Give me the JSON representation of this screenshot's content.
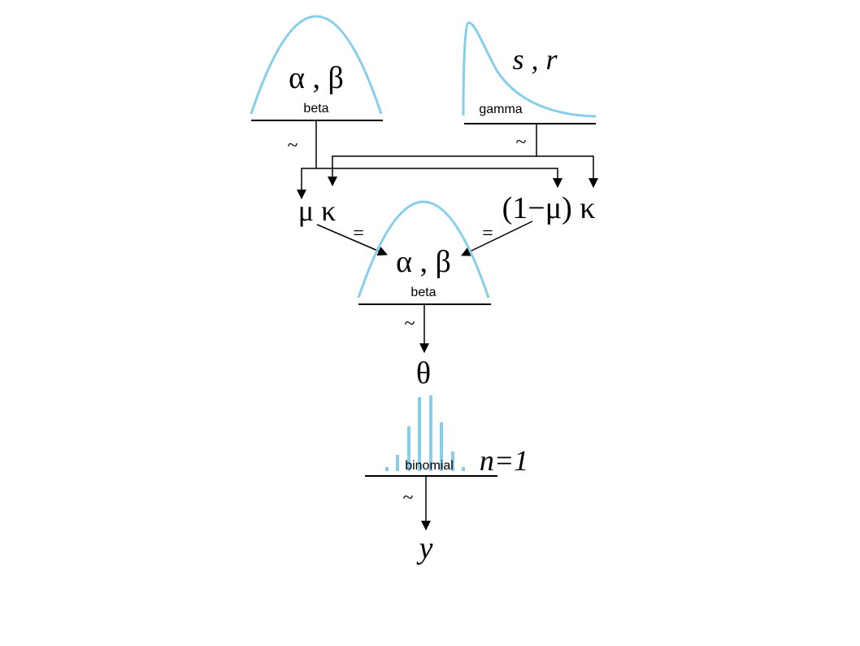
{
  "top_left_prior": {
    "params": "α , β",
    "distribution": "beta",
    "relation": "~"
  },
  "top_right_prior": {
    "params": "s , r",
    "distribution": "gamma",
    "relation": "~"
  },
  "middle": {
    "left_expr": "μ κ",
    "right_expr": "(1−μ) κ",
    "left_relation": "=",
    "right_relation": "=",
    "params": "α , β",
    "distribution": "beta",
    "relation": "~"
  },
  "theta": "θ",
  "likelihood": {
    "distribution": "binomial",
    "n_label": "n=1",
    "relation": "~"
  },
  "observed": "y",
  "colors": {
    "distribution_curve": "#87ceeb",
    "lines": "#000000"
  }
}
